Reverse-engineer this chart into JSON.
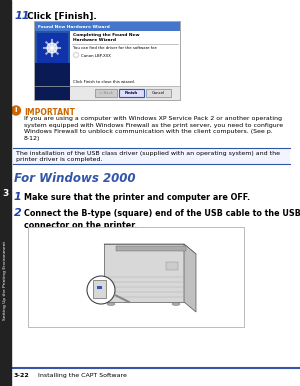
{
  "bg_color": "#ffffff",
  "sidebar_color": "#222222",
  "sidebar_text": "Setting Up the Printing Environment",
  "chapter_num": "3",
  "step11_num": "11",
  "step11_text": "Click [Finish].",
  "important_title": "IMPORTANT",
  "important_body": "If you are using a computer with Windows XP Service Pack 2 or another operating\nsystem equipped with Windows Firewall as the print server, you need to configure\nWindows Firewall to unblock communication with the client computers. (See p.\n8-12)",
  "note_text": "The installation of the USB class driver (supplied with an operating system) and the\nprinter driver is completed.",
  "section_title": "For Windows 2000",
  "step1_num": "1",
  "step1_text": "Make sure that the printer and computer are OFF.",
  "step2_num": "2",
  "step2_text": "Connect the B-type (square) end of the USB cable to the USB\nconnector on the printer.",
  "footer_line_color": "#3355aa",
  "footer_page": "3-22",
  "footer_text": "Installing the CAPT Software",
  "accent_color": "#3355aa",
  "orange_color": "#cc6600",
  "title_blue": "#2244aa",
  "dialog_title_color": "#4477cc",
  "dialog_bg": "#dde8f0",
  "dialog_blue_panel": "#2255aa"
}
